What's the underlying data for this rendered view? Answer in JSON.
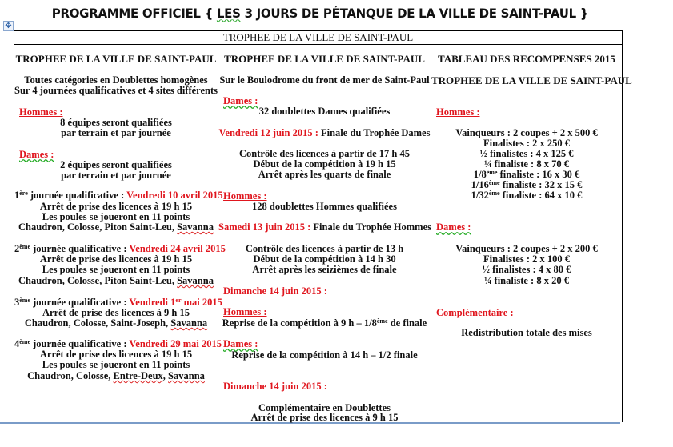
{
  "title_before": "PROGRAMME OFFICIEL { ",
  "title_squiggle": "LES",
  "title_after": " 3 JOURS DE PÉTANQUE DE LA VILLE DE SAINT-PAUL }",
  "table_header": "TROPHEE DE LA VILLE DE SAINT-PAUL",
  "columns": [
    [
      [
        {
          "t": "TROPHEE DE LA VILLE DE SAINT-PAUL",
          "k": "hd"
        }
      ],
      [
        {
          "t": "Toutes catégories en Doublettes homogènes"
        }
      ],
      [
        {
          "t": "Sur 4 journées qualificatives et 4 sites différents"
        }
      ],
      [
        {
          "t": "Hommes :",
          "k": "label"
        }
      ],
      [
        {
          "t": "8 équipes seront qualifiées"
        }
      ],
      [
        {
          "t": "par terrain et par journée"
        }
      ],
      [
        {
          "t": "Dames :",
          "k": "label sq"
        }
      ],
      [
        {
          "t": "2 équipes seront qualifiées"
        }
      ],
      [
        {
          "t": "par terrain et par journée"
        }
      ],
      [
        {
          "t": "1"
        },
        {
          "t": "ère",
          "k": "sup"
        },
        {
          "t": " journée qualificative : "
        },
        {
          "t": "Vendredi 10 avril 2015",
          "k": "red"
        }
      ],
      [
        {
          "t": "Arrêt de prise des licences à 19 h 15"
        }
      ],
      [
        {
          "t": "Les poules se joueront en 11 points"
        }
      ],
      [
        {
          "t": "Chaudron, Colosse, Piton Saint-Leu, "
        },
        {
          "t": "Savanna",
          "k": "sq2"
        }
      ],
      [
        {
          "t": "2"
        },
        {
          "t": "ème",
          "k": "sup"
        },
        {
          "t": " journée qualificative : "
        },
        {
          "t": "Vendredi 24 avril 2015",
          "k": "red"
        }
      ],
      [
        {
          "t": "Arrêt de prise des licences à 19 h 15"
        }
      ],
      [
        {
          "t": "Les poules se joueront en 11 points"
        }
      ],
      [
        {
          "t": "Chaudron, Colosse, Piton Saint-Leu, "
        },
        {
          "t": "Savanna",
          "k": "sq2"
        }
      ],
      [
        {
          "t": "3"
        },
        {
          "t": "ème",
          "k": "sup"
        },
        {
          "t": " journée qualificative : "
        },
        {
          "t": "Vendredi 1",
          "k": "red"
        },
        {
          "t": "er",
          "k": "red sup"
        },
        {
          "t": " mai 2015",
          "k": "red"
        }
      ],
      [
        {
          "t": "Arrêt de prise des licences à 9 h 15"
        }
      ],
      [
        {
          "t": "Chaudron, Colosse, Saint-Joseph, "
        },
        {
          "t": "Savanna",
          "k": "sq2"
        }
      ],
      [
        {
          "t": "4"
        },
        {
          "t": "ème",
          "k": "sup"
        },
        {
          "t": " journée qualificative : "
        },
        {
          "t": "Vendredi 29 mai 2015",
          "k": "red"
        }
      ],
      [
        {
          "t": "Arrêt de prise des licences à 19 h 15"
        }
      ],
      [
        {
          "t": "Les poules se joueront en 11 points"
        }
      ],
      [
        {
          "t": "Chaudron, Colosse, "
        },
        {
          "t": "Entre-Deux",
          "k": "sq2"
        },
        {
          "t": ", "
        },
        {
          "t": "Savanna",
          "k": "sq2"
        }
      ]
    ],
    [
      [
        {
          "t": "TROPHEE DE LA VILLE DE SAINT-PAUL",
          "k": "hd"
        }
      ],
      [
        {
          "t": "Sur le Boulodrome du front de mer de Saint-Paul"
        }
      ],
      [
        {
          "t": "Dames :",
          "k": "label sq"
        }
      ],
      [
        {
          "t": "32 doublettes Dames qualifiées"
        }
      ],
      [
        {
          "t": "Vendredi 12 juin 2015 : ",
          "k": "red"
        },
        {
          "t": "Finale du Trophée Dames"
        }
      ],
      [
        {
          "t": "Contrôle des licences à partir de 17 h 45"
        }
      ],
      [
        {
          "t": "Début de la compétition à 19 h 15"
        }
      ],
      [
        {
          "t": "Arrêt après les quarts de finale"
        }
      ],
      [
        {
          "t": "Hommes :",
          "k": "label"
        }
      ],
      [
        {
          "t": "128 doublettes Hommes qualifiées"
        }
      ],
      [
        {
          "t": "Samedi 13 juin 2015 : ",
          "k": "red"
        },
        {
          "t": "Finale du Trophée Hommes"
        }
      ],
      [
        {
          "t": "Contrôle des licences à partir de 13 h"
        }
      ],
      [
        {
          "t": "Début de la compétition à 14 h 30"
        }
      ],
      [
        {
          "t": "Arrêt après les seizièmes de finale"
        }
      ],
      [
        {
          "t": "Dimanche 14 juin 2015 :",
          "k": "red"
        }
      ],
      [
        {
          "t": "Hommes :",
          "k": "label"
        }
      ],
      [
        {
          "t": "Reprise de la compétition à 9 h – 1/8"
        },
        {
          "t": "ème",
          "k": "sup"
        },
        {
          "t": " de finale"
        }
      ],
      [
        {
          "t": "Dames :",
          "k": "label sq"
        }
      ],
      [
        {
          "t": "Reprise de la compétition à 14 h – 1/2 finale"
        }
      ],
      [
        {
          "t": "Dimanche 14 juin 2015 :",
          "k": "red"
        }
      ],
      [
        {
          "t": "Complémentaire en Doublettes"
        }
      ],
      [
        {
          "t": "Arrêt de prise des licences à 9 h 15"
        }
      ]
    ],
    [
      [
        {
          "t": "TABLEAU DES RECOMPENSES 2015",
          "k": "hd"
        }
      ],
      [
        {
          "t": "TROPHEE DE LA VILLE DE SAINT-PAUL",
          "k": "hd"
        }
      ],
      [
        {
          "t": "Hommes :",
          "k": "label"
        }
      ],
      [
        {
          "t": "Vainqueurs : 2 coupes  + 2 x 500 €"
        }
      ],
      [
        {
          "t": "Finalistes : 2 x 250 €"
        }
      ],
      [
        {
          "t": "½ finalistes : 4 x 125 €"
        }
      ],
      [
        {
          "t": "¼ finaliste : 8 x 70 €"
        }
      ],
      [
        {
          "t": "1/8"
        },
        {
          "t": "ème",
          "k": "sup"
        },
        {
          "t": " finaliste : 16 x 30 €"
        }
      ],
      [
        {
          "t": "1/16"
        },
        {
          "t": "ème",
          "k": "sup"
        },
        {
          "t": " finaliste : 32 x 15 €"
        }
      ],
      [
        {
          "t": "1/32"
        },
        {
          "t": "ème",
          "k": "sup"
        },
        {
          "t": " finaliste : 64 x 10 €"
        }
      ],
      [
        {
          "t": "Dames :",
          "k": "label sq"
        }
      ],
      [
        {
          "t": "Vainqueurs : 2 coupes  + 2 x 200 €"
        }
      ],
      [
        {
          "t": "Finalistes : 2 x 100 €"
        }
      ],
      [
        {
          "t": "½ finalistes : 4 x 80 €"
        }
      ],
      [
        {
          "t": "¼ finaliste : 8 x 20 €"
        }
      ],
      [
        {
          "t": "Complémentaire :",
          "k": "label"
        }
      ],
      [
        {
          "t": "Redistribution totale des mises"
        }
      ]
    ]
  ]
}
